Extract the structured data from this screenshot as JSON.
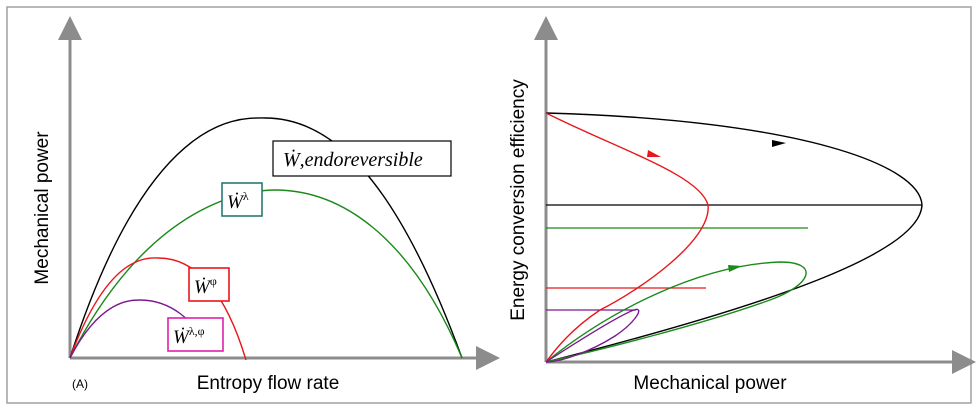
{
  "panel_label": "(A)",
  "left_panel": {
    "x_axis_label": "Entropy flow rate",
    "y_axis_label": "Mechanical power",
    "curves": [
      {
        "id": "endoreversible",
        "label_symbol": "Ẇ",
        "label_text": ",endoreversible",
        "color": "#000000"
      },
      {
        "id": "lambda",
        "label_symbol": "Ẇ",
        "label_super": "λ",
        "color": "#1a8a1a",
        "box_color": "#2a7a72"
      },
      {
        "id": "phi",
        "label_symbol": "Ẇ",
        "label_super": "φ",
        "color": "#e8171b",
        "box_color": "#e8171b"
      },
      {
        "id": "lambda_phi",
        "label_symbol": "Ẇ",
        "label_super": "λ,φ",
        "color": "#7b1b8f",
        "box_color": "#e020a8"
      }
    ]
  },
  "right_panel": {
    "x_axis_label": "Mechanical power",
    "y_axis_label": "Energy conversion efficiency"
  },
  "colors": {
    "axis": "#8c8c8c",
    "border": "#a0a0a0",
    "black_curve": "#000000",
    "green_curve": "#1a8a1a",
    "red_curve": "#e8171b",
    "purple_curve": "#7b1b8f"
  }
}
